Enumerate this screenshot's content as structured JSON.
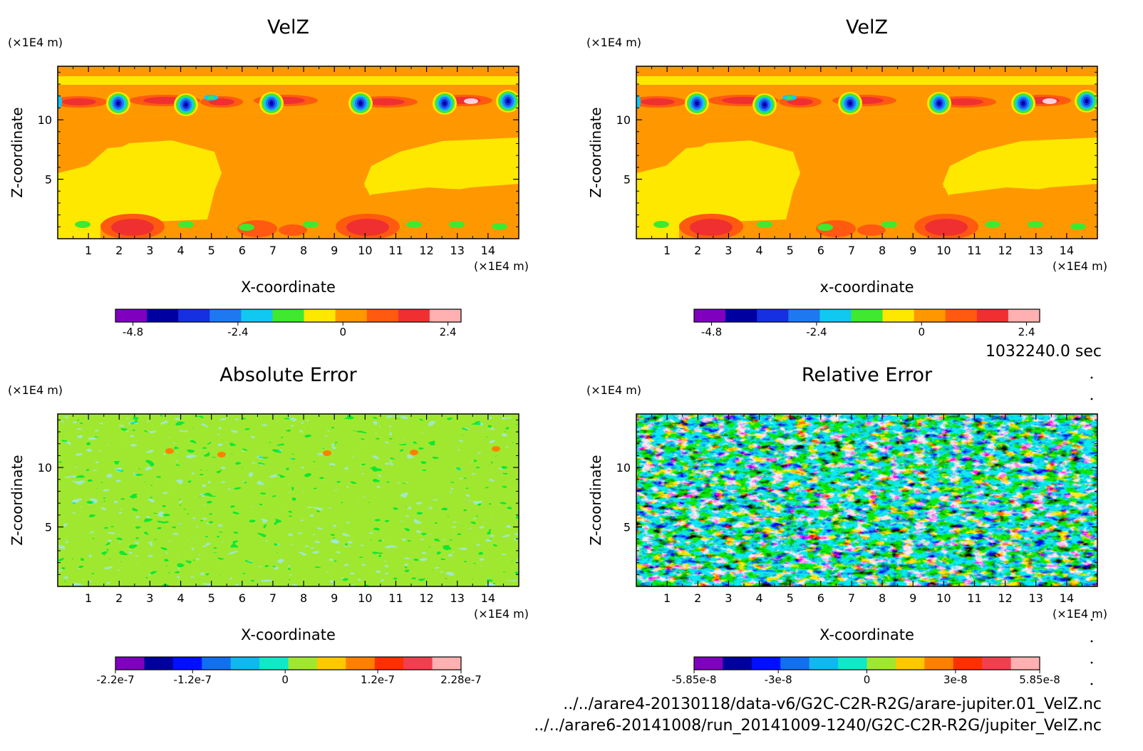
{
  "panels": [
    {
      "title": "VelZ",
      "xlabel": "X-coordinate",
      "ylabel": "Z-coordinate",
      "x_unit": "(×1E4 m)",
      "y_unit": "(×1E4 m)",
      "pattern": "field",
      "colorbar": {
        "min": -5.2,
        "max": 2.7,
        "labels": [
          "-4.8",
          "-2.4",
          "0",
          "2.4"
        ],
        "label_values": [
          -4.8,
          -2.4,
          0,
          2.4
        ],
        "colors": [
          "#8000c0",
          "#0000a0",
          "#1530e0",
          "#1e78f0",
          "#10c8f0",
          "#40e830",
          "#ffe800",
          "#ff9800",
          "#ff5a10",
          "#f03030",
          "#ffb0b0"
        ]
      }
    },
    {
      "title": "VelZ",
      "xlabel": "x-coordinate",
      "ylabel": "Z-coordinate",
      "x_unit": "(×1E4 m)",
      "y_unit": "(×1E4 m)",
      "pattern": "field",
      "colorbar": {
        "min": -5.2,
        "max": 2.7,
        "labels": [
          "-4.8",
          "-2.4",
          "0",
          "2.4"
        ],
        "label_values": [
          -4.8,
          -2.4,
          0,
          2.4
        ],
        "colors": [
          "#8000c0",
          "#0000a0",
          "#1530e0",
          "#1e78f0",
          "#10c8f0",
          "#40e830",
          "#ffe800",
          "#ff9800",
          "#ff5a10",
          "#f03030",
          "#ffb0b0"
        ]
      }
    },
    {
      "title": "Absolute Error",
      "xlabel": "X-coordinate",
      "ylabel": "Z-coordinate",
      "x_unit": "(×1E4 m)",
      "y_unit": "(×1E4 m)",
      "pattern": "abs",
      "colorbar": {
        "min": -2.2e-07,
        "max": 2.28e-07,
        "labels": [
          "-2.2e-7",
          "-1.2e-7",
          "0",
          "1.2e-7",
          "2.28e-7"
        ],
        "label_values": [
          -2.2e-07,
          -1.2e-07,
          0,
          1.2e-07,
          2.28e-07
        ],
        "colors": [
          "#8000c0",
          "#0000a0",
          "#0010ff",
          "#1070f0",
          "#10b8f0",
          "#10e8c8",
          "#a0e830",
          "#ffc800",
          "#ff8000",
          "#ff3000",
          "#f04050",
          "#ffb0b0"
        ]
      }
    },
    {
      "title": "Relative Error",
      "xlabel": "X-coordinate",
      "ylabel": "Z-coordinate",
      "x_unit": "(×1E4 m)",
      "y_unit": "(×1E4 m)",
      "pattern": "rel",
      "colorbar": {
        "min": -5.85e-08,
        "max": 5.85e-08,
        "labels": [
          "-5.85e-8",
          "-3e-8",
          "0",
          "3e-8",
          "5.85e-8"
        ],
        "label_values": [
          -5.85e-08,
          -3e-08,
          0,
          3e-08,
          5.85e-08
        ],
        "colors": [
          "#8000c0",
          "#0000a0",
          "#0010ff",
          "#1070f0",
          "#10b8f0",
          "#10e8c8",
          "#a0e830",
          "#ffc800",
          "#ff8000",
          "#ff3000",
          "#f04050",
          "#ffb0b0"
        ]
      }
    }
  ],
  "chart_data": [
    {
      "type": "heatmap",
      "title": "VelZ",
      "xlabel": "X-coordinate",
      "ylabel": "Z-coordinate",
      "x_ticks": [
        1,
        2,
        3,
        4,
        5,
        6,
        7,
        8,
        9,
        10,
        11,
        12,
        13,
        14
      ],
      "y_ticks": [
        5,
        10
      ],
      "xlim": [
        0,
        15
      ],
      "ylim": [
        0,
        14.5
      ],
      "colorbar_range": [
        -5.2,
        2.7
      ]
    },
    {
      "type": "heatmap",
      "title": "VelZ",
      "xlabel": "x-coordinate",
      "ylabel": "Z-coordinate",
      "x_ticks": [
        1,
        2,
        3,
        4,
        5,
        6,
        7,
        8,
        9,
        10,
        11,
        12,
        13,
        14
      ],
      "y_ticks": [
        5,
        10
      ],
      "xlim": [
        0,
        15
      ],
      "ylim": [
        0,
        14.5
      ],
      "colorbar_range": [
        -5.2,
        2.7
      ]
    },
    {
      "type": "heatmap",
      "title": "Absolute Error",
      "xlabel": "X-coordinate",
      "ylabel": "Z-coordinate",
      "x_ticks": [
        1,
        2,
        3,
        4,
        5,
        6,
        7,
        8,
        9,
        10,
        11,
        12,
        13,
        14
      ],
      "y_ticks": [
        5,
        10
      ],
      "xlim": [
        0,
        15
      ],
      "ylim": [
        0,
        14.5
      ],
      "colorbar_range": [
        -2.2e-07,
        2.28e-07
      ]
    },
    {
      "type": "heatmap",
      "title": "Relative Error",
      "xlabel": "X-coordinate",
      "ylabel": "Z-coordinate",
      "x_ticks": [
        1,
        2,
        3,
        4,
        5,
        6,
        7,
        8,
        9,
        10,
        11,
        12,
        13,
        14
      ],
      "y_ticks": [
        5,
        10
      ],
      "xlim": [
        0,
        15
      ],
      "ylim": [
        0,
        14.5
      ],
      "colorbar_range": [
        -5.85e-08,
        5.85e-08
      ]
    }
  ],
  "time_stamp": "1032240.0 sec",
  "file_paths": [
    "../../arare4-20130118/data-v6/G2C-C2R-R2G/arare-jupiter.01_VelZ.nc",
    "../../arare6-20141008/run_20141009-1240/G2C-C2R-R2G/jupiter_VelZ.nc"
  ]
}
